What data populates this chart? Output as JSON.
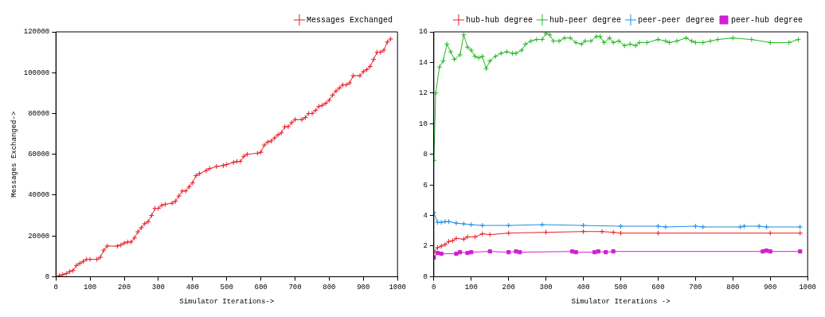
{
  "chart_data": [
    {
      "type": "line",
      "xlabel": "Simulator Iterations->",
      "ylabel": "Messages Exchanged->",
      "xlim": [
        0,
        1000
      ],
      "ylim": [
        0,
        120000
      ],
      "xticks": [
        0,
        100,
        200,
        300,
        400,
        500,
        600,
        700,
        800,
        900,
        1000
      ],
      "yticks": [
        0,
        20000,
        40000,
        60000,
        80000,
        100000,
        120000
      ],
      "legend": "top right",
      "grid": false,
      "line_style": "solid",
      "series": [
        {
          "name": "Messages Exchanged",
          "color": "#e8202a",
          "marker": "cross",
          "x": [
            0,
            10,
            20,
            30,
            40,
            50,
            60,
            70,
            80,
            90,
            100,
            120,
            130,
            140,
            150,
            180,
            190,
            200,
            210,
            220,
            230,
            240,
            250,
            260,
            270,
            280,
            290,
            300,
            310,
            320,
            340,
            350,
            360,
            370,
            380,
            390,
            400,
            410,
            420,
            440,
            450,
            470,
            490,
            500,
            520,
            530,
            540,
            550,
            560,
            590,
            600,
            610,
            620,
            630,
            640,
            650,
            660,
            670,
            680,
            690,
            700,
            720,
            730,
            740,
            750,
            760,
            770,
            780,
            790,
            800,
            810,
            820,
            830,
            840,
            850,
            860,
            870,
            890,
            900,
            910,
            920,
            930,
            940,
            950,
            960,
            970,
            980
          ],
          "values": [
            0,
            500,
            1000,
            1500,
            2500,
            3000,
            5500,
            6500,
            7500,
            8500,
            8500,
            8500,
            9500,
            13000,
            15000,
            15000,
            15500,
            16500,
            17000,
            17000,
            19000,
            22000,
            24000,
            26000,
            27000,
            30000,
            33500,
            33500,
            35000,
            35500,
            36000,
            37000,
            39500,
            42000,
            42000,
            44000,
            46000,
            49500,
            50500,
            52000,
            53000,
            54000,
            54500,
            55000,
            56000,
            56500,
            56500,
            59000,
            60000,
            60500,
            61000,
            64500,
            66000,
            66500,
            68000,
            69500,
            70500,
            73500,
            73500,
            75500,
            77000,
            77000,
            78000,
            80000,
            80000,
            81500,
            83500,
            84000,
            85000,
            86500,
            89000,
            91000,
            92500,
            94000,
            94000,
            95000,
            98500,
            98500,
            100500,
            101500,
            103000,
            106500,
            110000,
            110000,
            111000,
            115000,
            116500
          ]
        }
      ]
    },
    {
      "type": "line",
      "xlabel": "Simulator Iterations ->",
      "xlim": [
        0,
        1000
      ],
      "ylim": [
        0,
        16
      ],
      "xticks": [
        0,
        100,
        200,
        300,
        400,
        500,
        600,
        700,
        800,
        900,
        1000
      ],
      "yticks": [
        0,
        2,
        4,
        6,
        8,
        10,
        12,
        14,
        16
      ],
      "legend": "top right",
      "grid": false,
      "line_style": "solid",
      "series": [
        {
          "name": "hub-hub degree",
          "color": "#e8202a",
          "marker": "cross",
          "x": [
            0,
            10,
            20,
            30,
            40,
            50,
            60,
            80,
            90,
            110,
            130,
            150,
            200,
            300,
            400,
            450,
            480,
            500,
            600,
            900,
            980
          ],
          "values": [
            1.6,
            1.9,
            2.0,
            2.1,
            2.3,
            2.35,
            2.5,
            2.45,
            2.6,
            2.6,
            2.8,
            2.75,
            2.85,
            2.9,
            2.95,
            2.95,
            2.9,
            2.85,
            2.85,
            2.85,
            2.85
          ]
        },
        {
          "name": "hub-peer degree",
          "color": "#22b822",
          "marker": "cross",
          "x": [
            0,
            5,
            15,
            25,
            35,
            45,
            55,
            70,
            80,
            90,
            100,
            110,
            120,
            130,
            140,
            150,
            165,
            180,
            195,
            210,
            220,
            235,
            245,
            260,
            275,
            290,
            300,
            310,
            320,
            335,
            350,
            365,
            380,
            395,
            405,
            420,
            435,
            445,
            455,
            470,
            480,
            495,
            510,
            525,
            540,
            550,
            570,
            600,
            620,
            630,
            650,
            675,
            690,
            700,
            720,
            740,
            760,
            800,
            850,
            900,
            950,
            975
          ],
          "values": [
            7.6,
            12,
            13.7,
            14.1,
            15.2,
            14.7,
            14.2,
            14.5,
            15.8,
            15,
            14.8,
            14.4,
            14.3,
            14.4,
            13.6,
            14.1,
            14.4,
            14.6,
            14.7,
            14.6,
            14.6,
            14.8,
            15.2,
            15.4,
            15.5,
            15.5,
            15.9,
            15.8,
            15.4,
            15.4,
            15.6,
            15.6,
            15.3,
            15.2,
            15.4,
            15.4,
            15.7,
            15.7,
            15.3,
            15.6,
            15.3,
            15.4,
            15.1,
            15.2,
            15.1,
            15.3,
            15.3,
            15.5,
            15.4,
            15.3,
            15.4,
            15.6,
            15.4,
            15.3,
            15.3,
            15.4,
            15.5,
            15.6,
            15.5,
            15.3,
            15.3,
            15.5
          ]
        },
        {
          "name": "peer-peer degree",
          "color": "#1e90e0",
          "marker": "cross",
          "x": [
            0,
            10,
            20,
            30,
            40,
            60,
            80,
            100,
            130,
            200,
            290,
            400,
            500,
            600,
            620,
            700,
            720,
            820,
            830,
            870,
            890,
            980
          ],
          "values": [
            4.2,
            3.55,
            3.55,
            3.6,
            3.6,
            3.5,
            3.45,
            3.4,
            3.35,
            3.35,
            3.4,
            3.35,
            3.3,
            3.3,
            3.25,
            3.3,
            3.25,
            3.25,
            3.3,
            3.3,
            3.25,
            3.25
          ]
        },
        {
          "name": "peer-hub degree",
          "color": "#d020d0",
          "marker": "square",
          "x": [
            0,
            10,
            20,
            60,
            70,
            90,
            100,
            150,
            200,
            220,
            230,
            370,
            380,
            430,
            440,
            460,
            480,
            880,
            890,
            900,
            980
          ],
          "values": [
            1.25,
            1.55,
            1.5,
            1.5,
            1.6,
            1.55,
            1.6,
            1.65,
            1.6,
            1.65,
            1.6,
            1.65,
            1.6,
            1.6,
            1.65,
            1.6,
            1.65,
            1.65,
            1.7,
            1.65,
            1.65
          ]
        }
      ]
    }
  ]
}
